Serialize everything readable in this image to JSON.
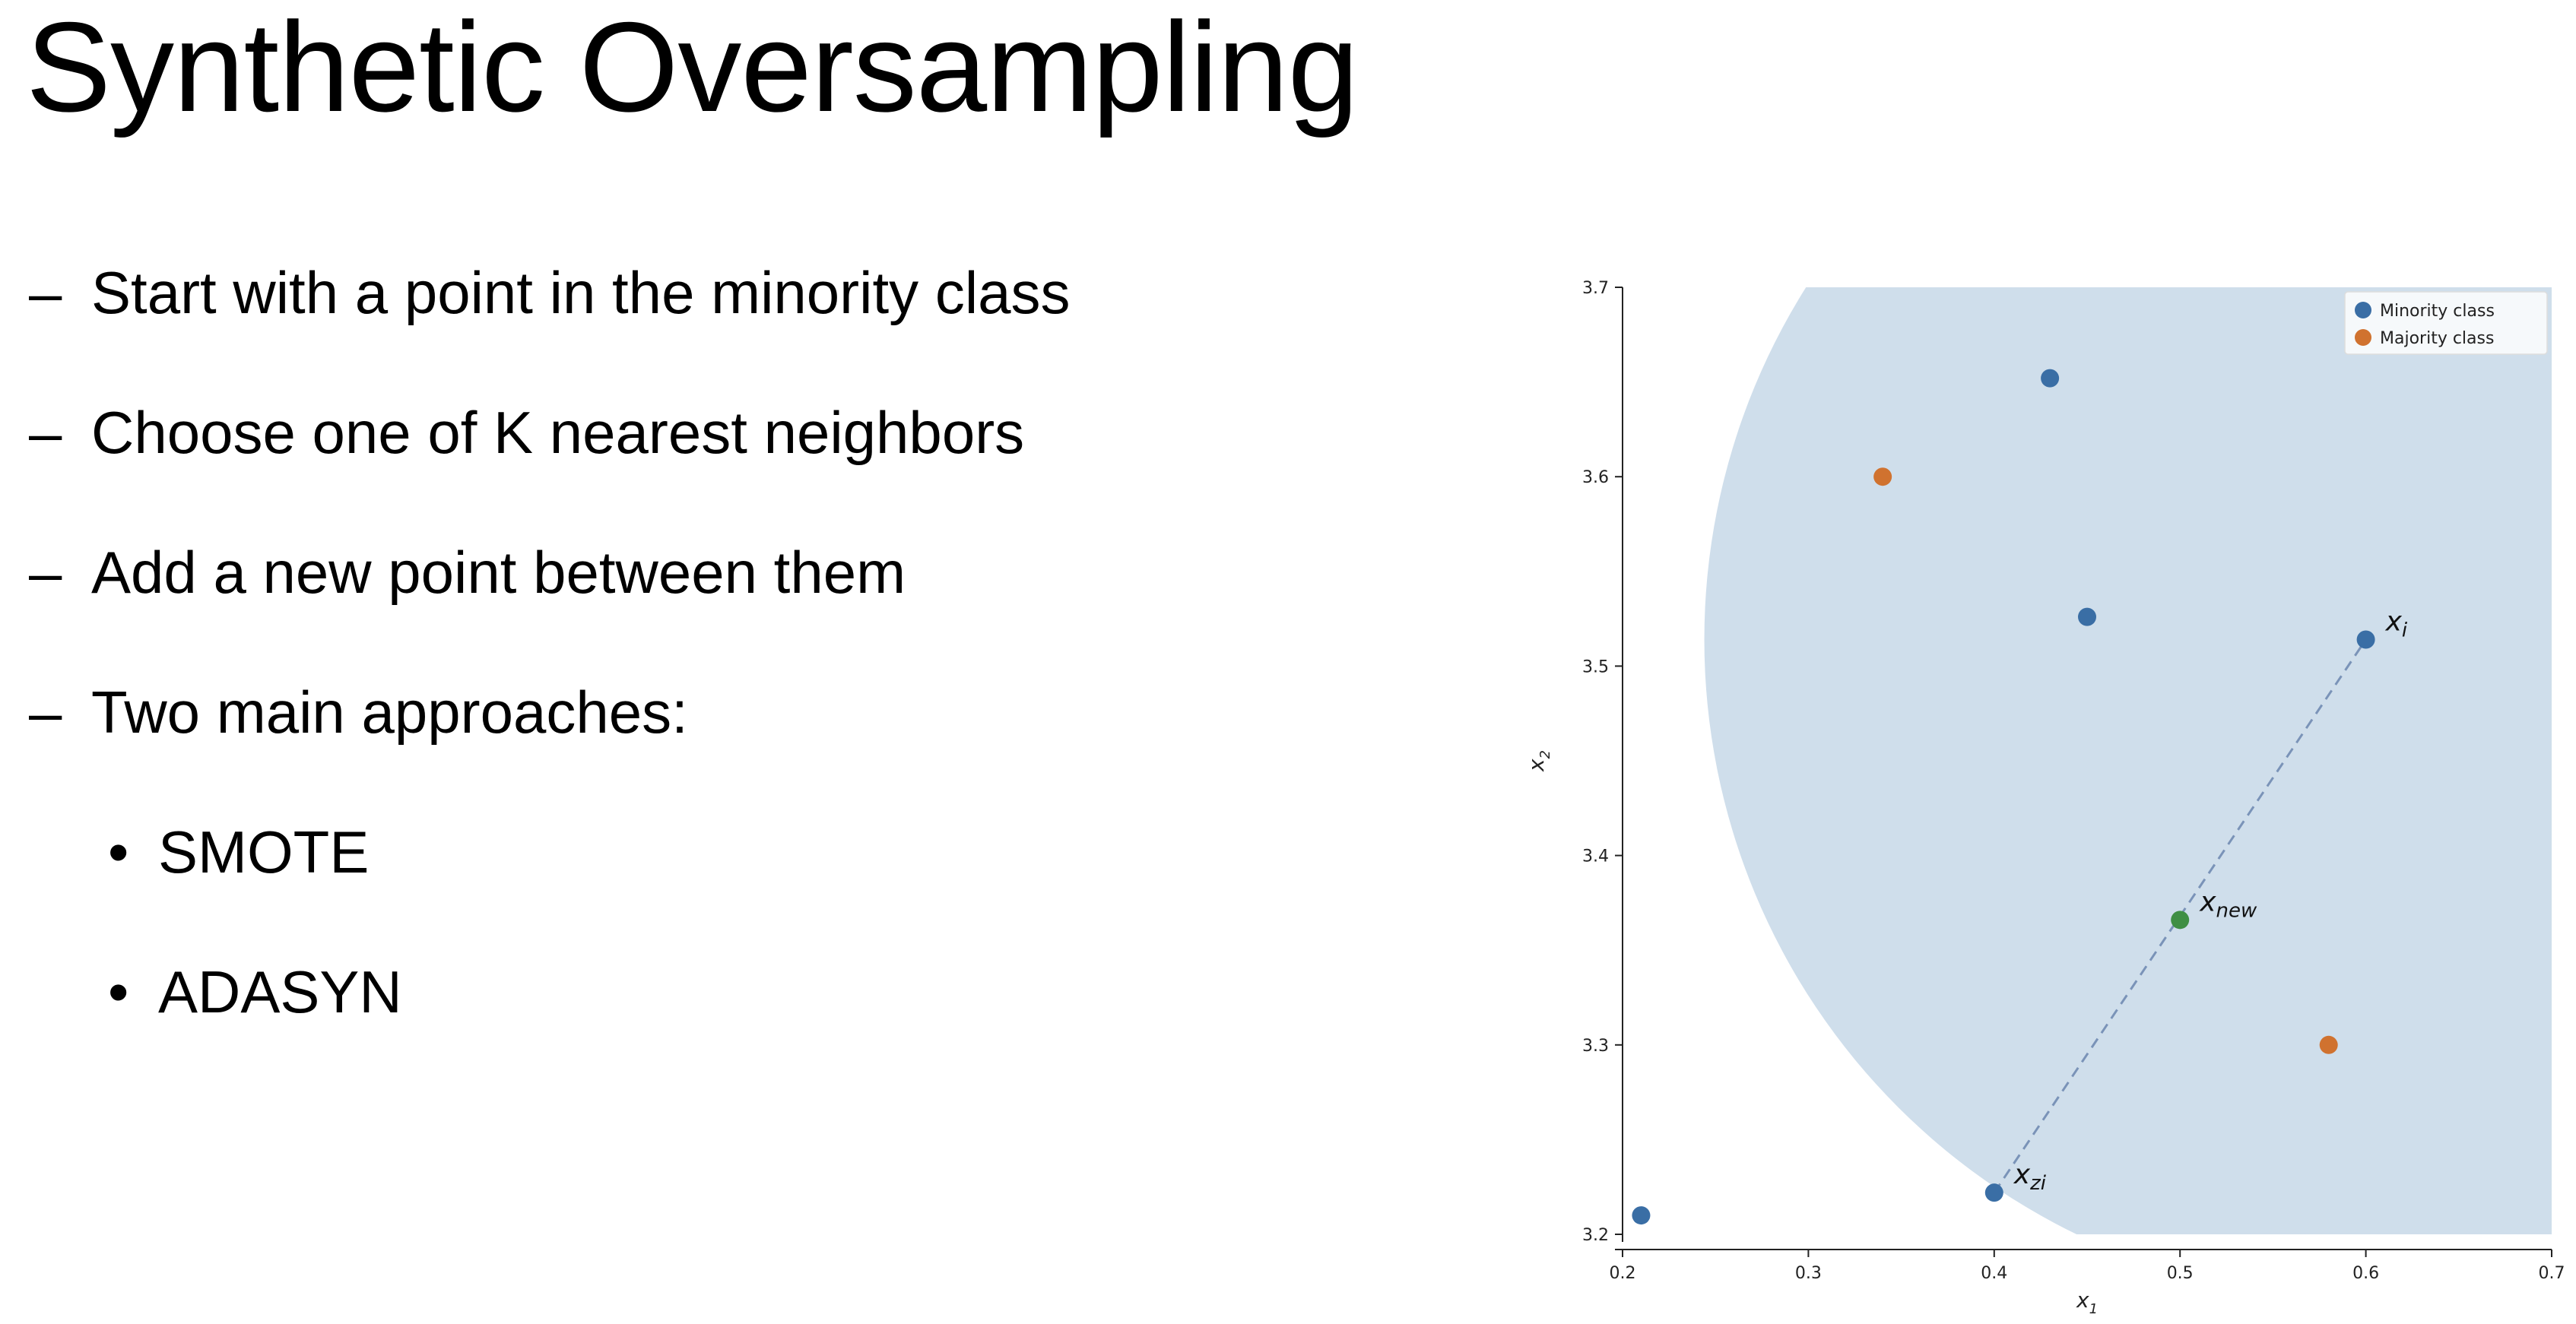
{
  "slide": {
    "title": "Synthetic Oversampling",
    "bullets": [
      {
        "marker": "–",
        "text": "Start with a point in the minority class",
        "level": 1
      },
      {
        "marker": "–",
        "text": "Choose one of K nearest neighbors",
        "level": 1
      },
      {
        "marker": "–",
        "text": "Add a new point between them",
        "level": 1
      },
      {
        "marker": "–",
        "text": "Two main approaches:",
        "level": 1
      },
      {
        "marker": "•",
        "text": "SMOTE",
        "level": 2
      },
      {
        "marker": "•",
        "text": "ADASYN",
        "level": 2
      }
    ]
  },
  "chart_data": {
    "type": "scatter",
    "xlabel": "x1",
    "ylabel": "x2",
    "xlim": [
      0.2,
      0.7
    ],
    "ylim": [
      3.2,
      3.7
    ],
    "xticks": [
      "0.2",
      "0.3",
      "0.4",
      "0.5",
      "0.6",
      "0.7"
    ],
    "yticks": [
      "3.2",
      "3.3",
      "3.4",
      "3.5",
      "3.6",
      "3.7"
    ],
    "legend_position": "top-right",
    "series": [
      {
        "name": "Minority class",
        "color": "#3a6ea5",
        "points": [
          [
            0.21,
            3.21
          ],
          [
            0.4,
            3.222
          ],
          [
            0.43,
            3.652
          ],
          [
            0.45,
            3.526
          ],
          [
            0.6,
            3.514
          ]
        ]
      },
      {
        "name": "Majority class",
        "color": "#d0722f",
        "points": [
          [
            0.34,
            3.6
          ],
          [
            0.58,
            3.3
          ]
        ]
      }
    ],
    "synthetic_point": {
      "x": 0.5,
      "y": 3.366,
      "color": "#3f8f44"
    },
    "segment": {
      "from": [
        0.4,
        3.222
      ],
      "to": [
        0.6,
        3.514
      ],
      "style": "dashed",
      "color": "#7a93b8"
    },
    "neighborhood": {
      "center": [
        0.6,
        3.514
      ],
      "radius_x_units": 0.356,
      "color": "#cfdeeb"
    },
    "annotations": [
      {
        "base": "x",
        "sub": "i",
        "x": 0.6,
        "y": 3.514
      },
      {
        "base": "x",
        "sub": "new",
        "x": 0.5,
        "y": 3.366
      },
      {
        "base": "x",
        "sub": "zi",
        "x": 0.4,
        "y": 3.222
      }
    ]
  }
}
